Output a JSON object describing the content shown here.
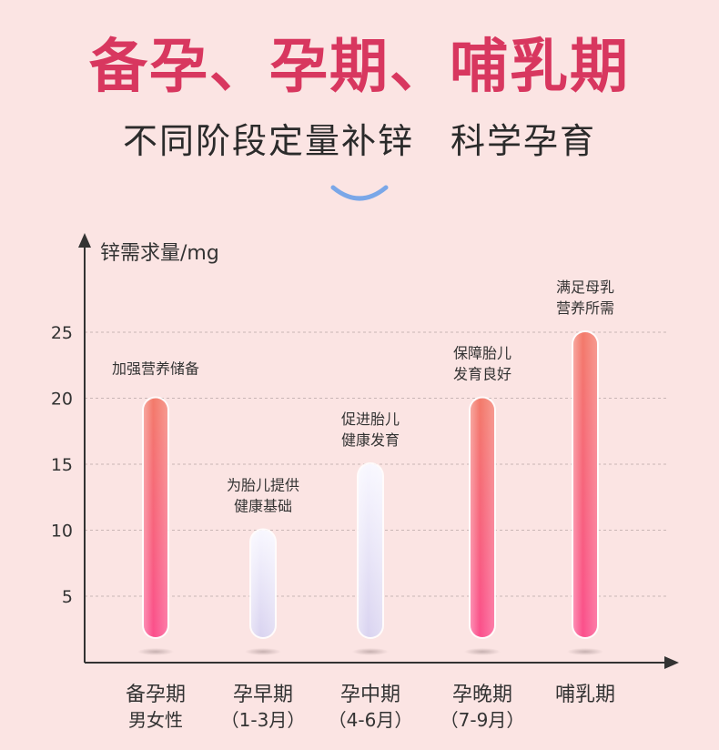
{
  "header": {
    "title": "备孕、孕期、哺乳期",
    "subtitle": "不同阶段定量补锌　科学孕育"
  },
  "chart_data": {
    "type": "bar",
    "ylabel": "锌需求量/mg",
    "ylim": [
      0,
      25
    ],
    "yticks": [
      5,
      10,
      15,
      20,
      25
    ],
    "grid": true,
    "categories": [
      {
        "line1": "备孕期",
        "line2": "男女性"
      },
      {
        "line1": "孕早期",
        "line2": "（1-3月）"
      },
      {
        "line1": "孕中期",
        "line2": "（4-6月）"
      },
      {
        "line1": "孕晚期",
        "line2": "（7-9月）"
      },
      {
        "line1": "哺乳期",
        "line2": ""
      }
    ],
    "values": [
      20,
      10,
      15,
      20,
      25
    ],
    "bar_styles": [
      "pink",
      "lavender",
      "lavender",
      "pink",
      "pink"
    ],
    "annotations": [
      {
        "line1": "加强营养储备",
        "line2": ""
      },
      {
        "line1": "为胎儿提供",
        "line2": "健康基础"
      },
      {
        "line1": "促进胎儿",
        "line2": "健康发育"
      },
      {
        "line1": "保障胎儿",
        "line2": "发育良好"
      },
      {
        "line1": "满足母乳",
        "line2": "营养所需"
      }
    ],
    "colors": {
      "pink_top": "#f37a6a",
      "pink_bottom": "#fb4f8c",
      "lavender_top": "#f8f7ff",
      "lavender_bottom": "#d9d3f0"
    }
  }
}
